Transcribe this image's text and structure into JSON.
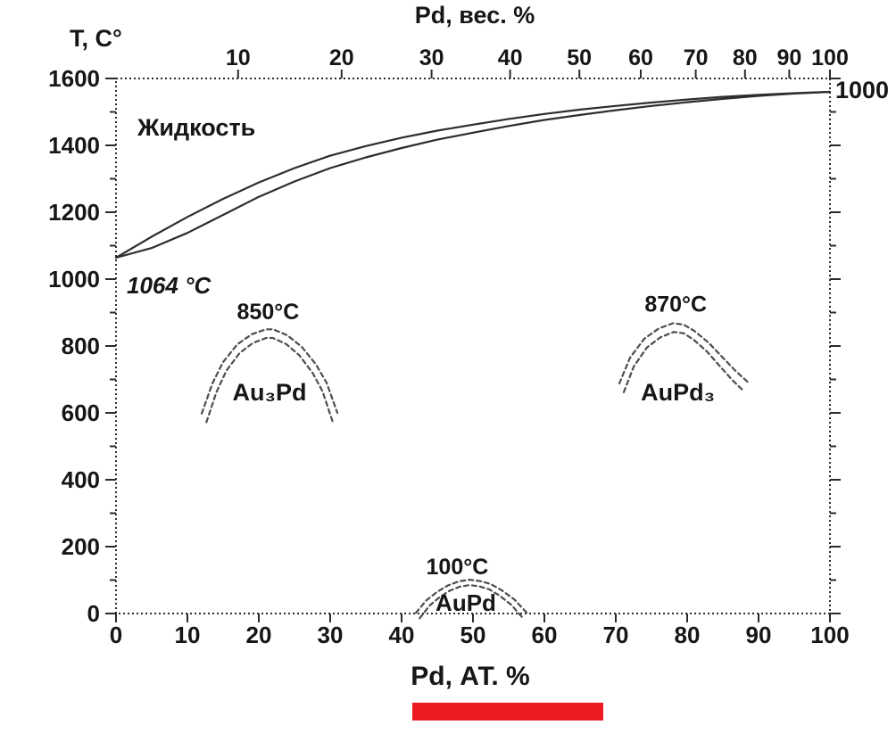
{
  "labels": {
    "y_axis_title": "T, C°",
    "top_axis_title": "Pd, вес. %",
    "bottom_axis_title": "Pd, АТ. %",
    "right_edge_label": "1000"
  },
  "colors": {
    "curve": "#2d2d2d",
    "dash": "#4d4d4d",
    "axis": "#2b2b2b",
    "text": "#161616",
    "red_bar": "#ee1b23"
  },
  "chart_data": {
    "type": "line",
    "title": "Au-Pd phase diagram",
    "xlabel": "Pd, АТ. %",
    "xlabel_top": "Pd, вес. %",
    "ylabel": "T, C°",
    "xlim": [
      0,
      100
    ],
    "ylim": [
      0,
      1600
    ],
    "grid": false,
    "x_ticks": [
      0,
      10,
      20,
      30,
      40,
      50,
      60,
      70,
      80,
      90,
      100
    ],
    "y_ticks": [
      0,
      200,
      400,
      600,
      800,
      1000,
      1200,
      1400,
      1600
    ],
    "y_minor_step": 100,
    "top_ticks": [
      {
        "label": "10",
        "at": 17.1
      },
      {
        "label": "20",
        "at": 31.6
      },
      {
        "label": "30",
        "at": 44.2
      },
      {
        "label": "40",
        "at": 55.2
      },
      {
        "label": "50",
        "at": 64.9
      },
      {
        "label": "60",
        "at": 73.5
      },
      {
        "label": "70",
        "at": 81.2
      },
      {
        "label": "80",
        "at": 88.1
      },
      {
        "label": "90",
        "at": 94.3
      },
      {
        "label": "100",
        "at": 100
      }
    ],
    "series": [
      {
        "name": "liquidus",
        "dashed": false,
        "points": [
          [
            0,
            1064
          ],
          [
            5,
            1127
          ],
          [
            10,
            1186
          ],
          [
            15,
            1240
          ],
          [
            20,
            1289
          ],
          [
            25,
            1332
          ],
          [
            30,
            1369
          ],
          [
            35,
            1398
          ],
          [
            40,
            1423
          ],
          [
            45,
            1444
          ],
          [
            50,
            1462
          ],
          [
            55,
            1479
          ],
          [
            60,
            1494
          ],
          [
            65,
            1507
          ],
          [
            70,
            1518
          ],
          [
            75,
            1528
          ],
          [
            80,
            1537
          ],
          [
            85,
            1545
          ],
          [
            90,
            1551
          ],
          [
            95,
            1556
          ],
          [
            100,
            1560
          ]
        ]
      },
      {
        "name": "solidus",
        "dashed": false,
        "points": [
          [
            0,
            1064
          ],
          [
            5,
            1093
          ],
          [
            10,
            1138
          ],
          [
            15,
            1192
          ],
          [
            20,
            1246
          ],
          [
            25,
            1292
          ],
          [
            30,
            1332
          ],
          [
            35,
            1364
          ],
          [
            40,
            1392
          ],
          [
            45,
            1417
          ],
          [
            50,
            1438
          ],
          [
            55,
            1458
          ],
          [
            60,
            1476
          ],
          [
            65,
            1491
          ],
          [
            70,
            1505
          ],
          [
            75,
            1518
          ],
          [
            80,
            1529
          ],
          [
            85,
            1539
          ],
          [
            90,
            1548
          ],
          [
            95,
            1555
          ],
          [
            100,
            1560
          ]
        ]
      },
      {
        "name": "Au3Pd-dome",
        "dashed": true,
        "double": true,
        "gap": 26,
        "points": [
          [
            12,
            598
          ],
          [
            13.5,
            688
          ],
          [
            15,
            752
          ],
          [
            17,
            805
          ],
          [
            19,
            835
          ],
          [
            21,
            850
          ],
          [
            22,
            850
          ],
          [
            24,
            832
          ],
          [
            26,
            798
          ],
          [
            28,
            745
          ],
          [
            29.5,
            690
          ],
          [
            31,
            600
          ]
        ]
      },
      {
        "name": "AuPd3-dome",
        "dashed": true,
        "double": true,
        "gap": 26,
        "points": [
          [
            70.5,
            688
          ],
          [
            72,
            765
          ],
          [
            74,
            822
          ],
          [
            76,
            852
          ],
          [
            78,
            868
          ],
          [
            79.5,
            864
          ],
          [
            81,
            845
          ],
          [
            83,
            810
          ],
          [
            85,
            765
          ],
          [
            86.8,
            725
          ],
          [
            88.5,
            692
          ]
        ]
      },
      {
        "name": "AuPd-dome",
        "dashed": true,
        "double": true,
        "gap": 16,
        "points": [
          [
            42,
            2
          ],
          [
            43.5,
            40
          ],
          [
            45,
            65
          ],
          [
            46.5,
            84
          ],
          [
            48,
            96
          ],
          [
            49.5,
            101
          ],
          [
            51,
            97
          ],
          [
            52.5,
            88
          ],
          [
            54,
            70
          ],
          [
            55.8,
            42
          ],
          [
            57.5,
            3
          ]
        ]
      }
    ],
    "annotations": [
      {
        "id": "liquid-region",
        "text": "Жидкость",
        "x": 3,
        "y": 1430,
        "anchor": "start",
        "size": 27
      },
      {
        "id": "au-melting-point",
        "text": "1064 °C",
        "x": 1.5,
        "y": 958,
        "anchor": "start",
        "size": 26,
        "italic": true
      },
      {
        "id": "au3pd-temp",
        "text": "850°C",
        "x": 21.3,
        "y": 880,
        "anchor": "middle",
        "size": 25
      },
      {
        "id": "au3pd-name",
        "text": "Au₃Pd",
        "x": 21.5,
        "y": 638,
        "anchor": "middle",
        "size": 27
      },
      {
        "id": "aupd3-temp",
        "text": "870°C",
        "x": 78.4,
        "y": 903,
        "anchor": "middle",
        "size": 25
      },
      {
        "id": "aupd3-name",
        "text": "AuPd₃",
        "x": 78.7,
        "y": 638,
        "anchor": "middle",
        "size": 27
      },
      {
        "id": "aupd-temp",
        "text": "100°C",
        "x": 47.8,
        "y": 118,
        "anchor": "middle",
        "size": 25
      },
      {
        "id": "aupd-name",
        "text": "AuPd",
        "x": 49,
        "y": 8,
        "anchor": "middle",
        "size": 26
      }
    ]
  }
}
